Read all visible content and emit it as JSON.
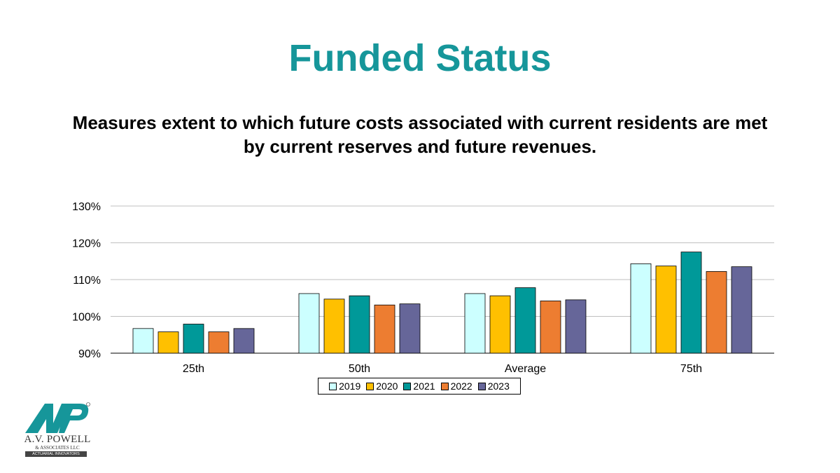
{
  "slide": {
    "title": "Funded Status",
    "title_color": "#16969A",
    "subtitle": "Measures extent to which future costs associated with current residents are met by current reserves and future revenues."
  },
  "chart_data": {
    "type": "bar",
    "categories": [
      "25th",
      "50th",
      "Average",
      "75th"
    ],
    "series": [
      {
        "name": "2019",
        "color": "#CCFFFF",
        "values": [
          96.7,
          106.2,
          106.2,
          114.3
        ]
      },
      {
        "name": "2020",
        "color": "#FFC000",
        "values": [
          95.8,
          104.7,
          105.6,
          113.7
        ]
      },
      {
        "name": "2021",
        "color": "#009999",
        "values": [
          97.9,
          105.6,
          107.8,
          117.5
        ]
      },
      {
        "name": "2022",
        "color": "#ED7D31",
        "values": [
          95.8,
          103.1,
          104.2,
          112.2
        ]
      },
      {
        "name": "2023",
        "color": "#666699",
        "values": [
          96.7,
          103.4,
          104.5,
          113.5
        ]
      }
    ],
    "ylim": [
      90,
      130
    ],
    "yticks": [
      "90%",
      "100%",
      "110%",
      "120%",
      "130%"
    ],
    "ytick_values": [
      90,
      100,
      110,
      120,
      130
    ],
    "grid": true,
    "legend_placement": "bottom",
    "xlabel": "",
    "ylabel": ""
  },
  "logo": {
    "line1": "A.V. POWELL",
    "line2": "& ASSOCIATES LLC",
    "line3": "ACTUARIAL INNOVATORS",
    "color": "#16969A"
  }
}
